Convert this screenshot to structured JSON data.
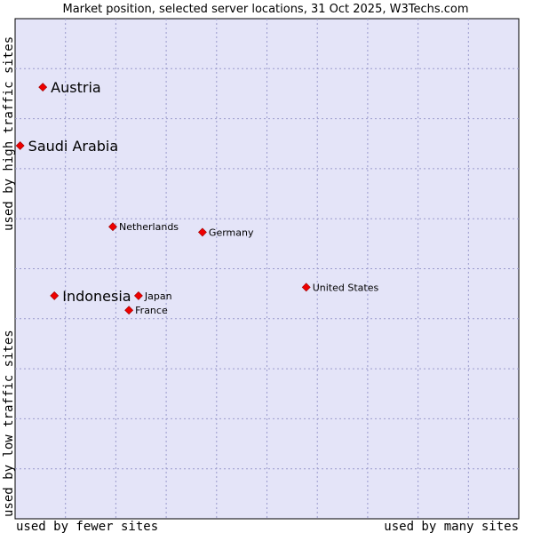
{
  "chart_data": {
    "type": "scatter",
    "title": "Market position, selected server locations, 31 Oct 2025, W3Techs.com",
    "xlabel_low": "used by fewer sites",
    "xlabel_high": "used by many sites",
    "ylabel_low": "used by low traffic sites",
    "ylabel_high": "used by high traffic sites",
    "xlim": [
      0,
      100
    ],
    "ylim": [
      0,
      100
    ],
    "grid": true,
    "background_color": "#e4e4f8",
    "point_color": "#ee0000",
    "points": [
      {
        "label": "Austria",
        "x": 5.5,
        "y": 86.3,
        "emphasis": true
      },
      {
        "label": "Saudi Arabia",
        "x": 1.0,
        "y": 74.6,
        "emphasis": true
      },
      {
        "label": "Netherlands",
        "x": 19.4,
        "y": 58.4,
        "emphasis": false
      },
      {
        "label": "Germany",
        "x": 37.2,
        "y": 57.3,
        "emphasis": false
      },
      {
        "label": "United States",
        "x": 57.8,
        "y": 46.3,
        "emphasis": false
      },
      {
        "label": "Indonesia",
        "x": 7.8,
        "y": 44.6,
        "emphasis": true
      },
      {
        "label": "Japan",
        "x": 24.5,
        "y": 44.6,
        "emphasis": false
      },
      {
        "label": "France",
        "x": 22.6,
        "y": 41.7,
        "emphasis": false
      }
    ]
  }
}
